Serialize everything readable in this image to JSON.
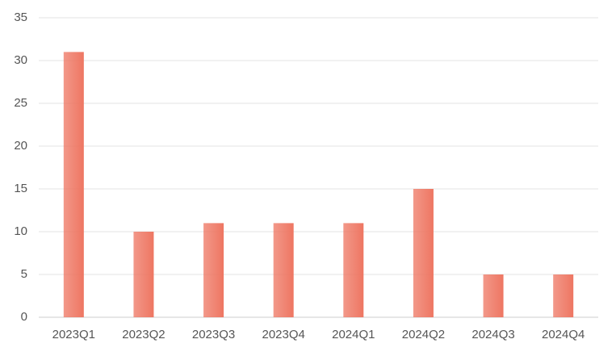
{
  "chart_data": {
    "type": "bar",
    "categories": [
      "2023Q1",
      "2023Q2",
      "2023Q3",
      "2023Q4",
      "2024Q1",
      "2024Q2",
      "2024Q3",
      "2024Q4"
    ],
    "values": [
      31,
      10,
      11,
      11,
      11,
      15,
      5,
      5
    ],
    "color": "#ee7662",
    "ylim": [
      0,
      35
    ],
    "yticks": [
      0,
      5,
      10,
      15,
      20,
      25,
      30,
      35
    ],
    "grid": true
  }
}
